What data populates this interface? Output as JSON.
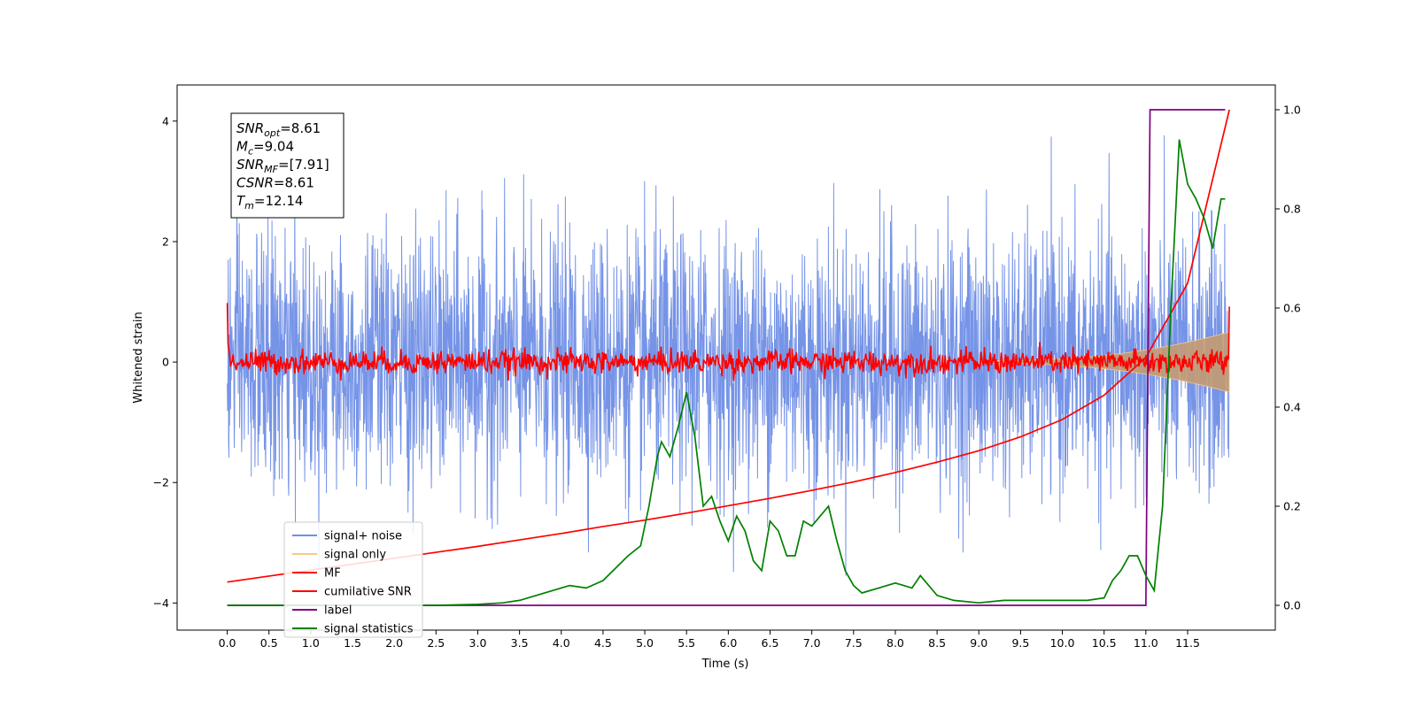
{
  "chart_data": {
    "type": "line",
    "xlabel": "Time (s)",
    "ylabel": "Whitened strain",
    "xlim": [
      -0.6,
      12.55
    ],
    "ylim": [
      -4.45,
      4.6
    ],
    "y2lim": [
      -0.05,
      1.05
    ],
    "xticks": [
      "0.0",
      "0.5",
      "1.0",
      "1.5",
      "2.0",
      "2.5",
      "3.0",
      "3.5",
      "4.0",
      "4.5",
      "5.0",
      "5.5",
      "6.0",
      "6.5",
      "7.0",
      "7.5",
      "8.0",
      "8.5",
      "9.0",
      "9.5",
      "10.0",
      "10.5",
      "11.0",
      "11.5"
    ],
    "yticks": [
      "−4",
      "−2",
      "0",
      "2",
      "4"
    ],
    "y2ticks": [
      "0.0",
      "0.2",
      "0.4",
      "0.6",
      "0.8",
      "1.0"
    ],
    "grid": false,
    "legend_position": "lower-left",
    "legend": [
      {
        "label": "signal+ noise",
        "color": "#6f8ee6"
      },
      {
        "label": "signal only",
        "color": "#f5c98a"
      },
      {
        "label": "MF",
        "color": "#ff0000"
      },
      {
        "label": "cumilative SNR",
        "color": "#ff0000"
      },
      {
        "label": "label",
        "color": "#800080"
      },
      {
        "label": "signal statistics",
        "color": "#008000"
      }
    ],
    "stats_box": [
      {
        "name": "SNR",
        "sub": "opt",
        "value": "=8.61"
      },
      {
        "name": "M",
        "sub": "c",
        "value": "=9.04"
      },
      {
        "name": "SNR",
        "sub": "MF",
        "value": "=[7.91]"
      },
      {
        "name": "CSNR",
        "sub": "",
        "value": "=8.61"
      },
      {
        "name": "T",
        "sub": "m",
        "value": "=12.14"
      }
    ],
    "series": [
      {
        "name": "cumilative SNR",
        "axis": "right",
        "color": "#ff0000",
        "x": [
          0,
          0.5,
          1,
          1.5,
          2,
          2.5,
          3,
          3.5,
          4,
          4.5,
          5,
          5.5,
          6,
          6.5,
          7,
          7.5,
          8,
          8.5,
          9,
          9.5,
          10,
          10.5,
          11,
          11.5,
          12.0
        ],
        "y": [
          0.047,
          0.059,
          0.071,
          0.083,
          0.095,
          0.107,
          0.119,
          0.132,
          0.145,
          0.159,
          0.172,
          0.186,
          0.201,
          0.216,
          0.232,
          0.249,
          0.268,
          0.289,
          0.312,
          0.34,
          0.375,
          0.424,
          0.5,
          0.65,
          1.0
        ]
      },
      {
        "name": "label",
        "axis": "right",
        "color": "#800080",
        "x": [
          0,
          11.0,
          11.05,
          11.95
        ],
        "y": [
          0.0,
          0.0,
          1.0,
          1.0
        ]
      },
      {
        "name": "signal statistics",
        "axis": "right",
        "color": "#008000",
        "x": [
          0,
          0.5,
          1.0,
          1.5,
          2.0,
          2.5,
          3.0,
          3.3,
          3.5,
          3.7,
          3.9,
          4.1,
          4.3,
          4.5,
          4.65,
          4.8,
          4.95,
          5.05,
          5.15,
          5.2,
          5.3,
          5.4,
          5.5,
          5.6,
          5.7,
          5.8,
          5.9,
          6.0,
          6.1,
          6.2,
          6.3,
          6.4,
          6.5,
          6.6,
          6.7,
          6.8,
          6.9,
          7.0,
          7.1,
          7.2,
          7.3,
          7.4,
          7.5,
          7.6,
          7.8,
          8.0,
          8.2,
          8.3,
          8.4,
          8.5,
          8.7,
          9.0,
          9.3,
          9.5,
          10.0,
          10.3,
          10.5,
          10.6,
          10.7,
          10.8,
          10.9,
          11.0,
          11.1,
          11.2,
          11.3,
          11.4,
          11.5,
          11.6,
          11.7,
          11.8,
          11.9,
          11.95
        ],
        "y": [
          0.0,
          0.0,
          0.0,
          0.0,
          0.0,
          0.0,
          0.002,
          0.005,
          0.01,
          0.02,
          0.03,
          0.04,
          0.035,
          0.05,
          0.075,
          0.1,
          0.12,
          0.2,
          0.3,
          0.33,
          0.3,
          0.36,
          0.43,
          0.34,
          0.2,
          0.22,
          0.17,
          0.13,
          0.18,
          0.15,
          0.09,
          0.07,
          0.17,
          0.15,
          0.1,
          0.1,
          0.17,
          0.16,
          0.18,
          0.2,
          0.13,
          0.07,
          0.04,
          0.025,
          0.035,
          0.045,
          0.035,
          0.06,
          0.04,
          0.02,
          0.01,
          0.005,
          0.01,
          0.01,
          0.01,
          0.01,
          0.015,
          0.05,
          0.07,
          0.1,
          0.1,
          0.06,
          0.03,
          0.2,
          0.6,
          0.94,
          0.85,
          0.82,
          0.78,
          0.72,
          0.82,
          0.82
        ]
      }
    ]
  }
}
